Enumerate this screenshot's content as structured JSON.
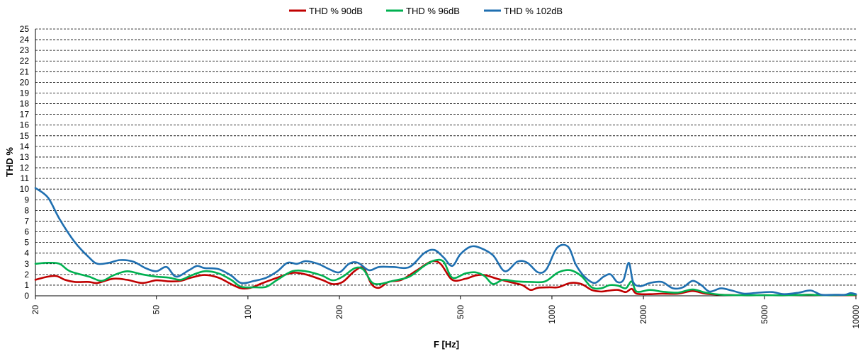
{
  "chart_data": {
    "type": "line",
    "title": "",
    "xlabel": "F [Hz]",
    "ylabel": "THD %",
    "x_scale": "log",
    "xlim": [
      20,
      10000
    ],
    "ylim": [
      0,
      25
    ],
    "x_ticks": [
      20,
      50,
      100,
      200,
      500,
      1000,
      2000,
      5000,
      10000
    ],
    "y_ticks": [
      0,
      1,
      2,
      3,
      4,
      5,
      6,
      7,
      8,
      9,
      10,
      11,
      12,
      13,
      14,
      15,
      16,
      17,
      18,
      19,
      20,
      21,
      22,
      23,
      24,
      25
    ],
    "grid": "horizontal dashed",
    "legend_position": "top-center",
    "series": [
      {
        "name": "THD % 90dB",
        "color": "#c00000",
        "points": [
          [
            20,
            1.5
          ],
          [
            22,
            1.8
          ],
          [
            23.5,
            1.85
          ],
          [
            25,
            1.5
          ],
          [
            27,
            1.3
          ],
          [
            30,
            1.3
          ],
          [
            32,
            1.2
          ],
          [
            36,
            1.6
          ],
          [
            40,
            1.5
          ],
          [
            45,
            1.2
          ],
          [
            50,
            1.45
          ],
          [
            55,
            1.35
          ],
          [
            60,
            1.4
          ],
          [
            65,
            1.7
          ],
          [
            72,
            1.95
          ],
          [
            80,
            1.7
          ],
          [
            88,
            1.1
          ],
          [
            95,
            0.7
          ],
          [
            102,
            0.75
          ],
          [
            112,
            1.2
          ],
          [
            125,
            1.7
          ],
          [
            140,
            2.15
          ],
          [
            155,
            2.0
          ],
          [
            175,
            1.5
          ],
          [
            190,
            1.1
          ],
          [
            205,
            1.3
          ],
          [
            225,
            2.35
          ],
          [
            240,
            2.6
          ],
          [
            255,
            1.1
          ],
          [
            270,
            0.75
          ],
          [
            290,
            1.3
          ],
          [
            320,
            1.5
          ],
          [
            360,
            2.4
          ],
          [
            400,
            3.2
          ],
          [
            430,
            3.0
          ],
          [
            470,
            1.5
          ],
          [
            520,
            1.6
          ],
          [
            560,
            1.9
          ],
          [
            600,
            1.95
          ],
          [
            660,
            1.6
          ],
          [
            750,
            1.2
          ],
          [
            800,
            1.0
          ],
          [
            850,
            0.55
          ],
          [
            900,
            0.75
          ],
          [
            980,
            0.8
          ],
          [
            1050,
            0.8
          ],
          [
            1150,
            1.2
          ],
          [
            1250,
            1.1
          ],
          [
            1350,
            0.55
          ],
          [
            1450,
            0.4
          ],
          [
            1550,
            0.5
          ],
          [
            1650,
            0.55
          ],
          [
            1750,
            0.35
          ],
          [
            1830,
            0.65
          ],
          [
            1900,
            0.2
          ],
          [
            2100,
            0.15
          ],
          [
            2300,
            0.2
          ],
          [
            2600,
            0.2
          ],
          [
            2900,
            0.45
          ],
          [
            3200,
            0.2
          ],
          [
            3600,
            0.1
          ],
          [
            4200,
            0.05
          ],
          [
            5000,
            0.05
          ],
          [
            6000,
            0.05
          ],
          [
            7000,
            0.1
          ],
          [
            8000,
            0.05
          ],
          [
            10000,
            0.05
          ]
        ]
      },
      {
        "name": "THD % 96dB",
        "color": "#00b050",
        "points": [
          [
            20,
            3.0
          ],
          [
            22,
            3.1
          ],
          [
            24,
            3.0
          ],
          [
            26,
            2.3
          ],
          [
            30,
            1.8
          ],
          [
            33,
            1.4
          ],
          [
            36,
            1.9
          ],
          [
            40,
            2.3
          ],
          [
            45,
            2.0
          ],
          [
            50,
            1.8
          ],
          [
            55,
            1.7
          ],
          [
            60,
            1.5
          ],
          [
            65,
            1.9
          ],
          [
            72,
            2.3
          ],
          [
            80,
            2.1
          ],
          [
            88,
            1.5
          ],
          [
            95,
            0.85
          ],
          [
            105,
            0.8
          ],
          [
            115,
            0.85
          ],
          [
            125,
            1.5
          ],
          [
            140,
            2.3
          ],
          [
            155,
            2.3
          ],
          [
            175,
            1.9
          ],
          [
            190,
            1.45
          ],
          [
            205,
            1.8
          ],
          [
            225,
            2.6
          ],
          [
            240,
            2.45
          ],
          [
            255,
            1.3
          ],
          [
            270,
            1.1
          ],
          [
            300,
            1.4
          ],
          [
            340,
            1.8
          ],
          [
            380,
            2.8
          ],
          [
            410,
            3.3
          ],
          [
            440,
            3.2
          ],
          [
            470,
            1.7
          ],
          [
            520,
            2.1
          ],
          [
            560,
            2.2
          ],
          [
            600,
            1.85
          ],
          [
            640,
            1.1
          ],
          [
            690,
            1.5
          ],
          [
            760,
            1.35
          ],
          [
            850,
            1.3
          ],
          [
            950,
            1.35
          ],
          [
            1050,
            2.2
          ],
          [
            1150,
            2.4
          ],
          [
            1250,
            1.85
          ],
          [
            1350,
            0.8
          ],
          [
            1450,
            0.7
          ],
          [
            1550,
            1.0
          ],
          [
            1650,
            0.95
          ],
          [
            1750,
            0.7
          ],
          [
            1830,
            1.35
          ],
          [
            1900,
            0.4
          ],
          [
            2100,
            0.55
          ],
          [
            2300,
            0.4
          ],
          [
            2600,
            0.3
          ],
          [
            2900,
            0.6
          ],
          [
            3200,
            0.3
          ],
          [
            3600,
            0.1
          ],
          [
            4200,
            0.05
          ],
          [
            5000,
            0.05
          ],
          [
            6000,
            0.05
          ],
          [
            7000,
            0.1
          ],
          [
            8000,
            0.05
          ],
          [
            10000,
            0.1
          ]
        ]
      },
      {
        "name": "THD % 102dB",
        "color": "#1f6fb0",
        "points": [
          [
            20,
            10.1
          ],
          [
            22,
            9.2
          ],
          [
            24,
            7.2
          ],
          [
            27,
            5.0
          ],
          [
            30,
            3.6
          ],
          [
            32,
            3.0
          ],
          [
            35,
            3.1
          ],
          [
            38,
            3.35
          ],
          [
            42,
            3.2
          ],
          [
            46,
            2.6
          ],
          [
            50,
            2.3
          ],
          [
            54,
            2.7
          ],
          [
            58,
            1.8
          ],
          [
            64,
            2.4
          ],
          [
            68,
            2.8
          ],
          [
            72,
            2.6
          ],
          [
            80,
            2.5
          ],
          [
            88,
            1.9
          ],
          [
            95,
            1.2
          ],
          [
            105,
            1.4
          ],
          [
            115,
            1.7
          ],
          [
            125,
            2.3
          ],
          [
            135,
            3.1
          ],
          [
            145,
            3.0
          ],
          [
            155,
            3.25
          ],
          [
            170,
            3.0
          ],
          [
            185,
            2.5
          ],
          [
            200,
            2.2
          ],
          [
            215,
            3.0
          ],
          [
            230,
            3.1
          ],
          [
            250,
            2.4
          ],
          [
            270,
            2.7
          ],
          [
            300,
            2.7
          ],
          [
            340,
            2.7
          ],
          [
            380,
            4.0
          ],
          [
            410,
            4.3
          ],
          [
            440,
            3.6
          ],
          [
            470,
            2.8
          ],
          [
            500,
            3.9
          ],
          [
            540,
            4.6
          ],
          [
            580,
            4.5
          ],
          [
            640,
            3.8
          ],
          [
            700,
            2.3
          ],
          [
            770,
            3.2
          ],
          [
            830,
            3.1
          ],
          [
            900,
            2.2
          ],
          [
            960,
            2.5
          ],
          [
            1040,
            4.5
          ],
          [
            1130,
            4.6
          ],
          [
            1200,
            2.9
          ],
          [
            1280,
            1.8
          ],
          [
            1380,
            1.2
          ],
          [
            1480,
            1.8
          ],
          [
            1560,
            2.0
          ],
          [
            1640,
            1.3
          ],
          [
            1720,
            1.5
          ],
          [
            1790,
            3.1
          ],
          [
            1850,
            1.3
          ],
          [
            1950,
            0.9
          ],
          [
            2100,
            1.2
          ],
          [
            2300,
            1.3
          ],
          [
            2500,
            0.7
          ],
          [
            2700,
            0.8
          ],
          [
            2900,
            1.4
          ],
          [
            3100,
            1.0
          ],
          [
            3300,
            0.4
          ],
          [
            3600,
            0.7
          ],
          [
            3900,
            0.5
          ],
          [
            4300,
            0.2
          ],
          [
            4800,
            0.3
          ],
          [
            5300,
            0.35
          ],
          [
            5800,
            0.15
          ],
          [
            6500,
            0.3
          ],
          [
            7100,
            0.5
          ],
          [
            7700,
            0.1
          ],
          [
            8500,
            0.1
          ],
          [
            9200,
            0.1
          ],
          [
            9600,
            0.25
          ],
          [
            10000,
            0.15
          ]
        ]
      }
    ]
  }
}
